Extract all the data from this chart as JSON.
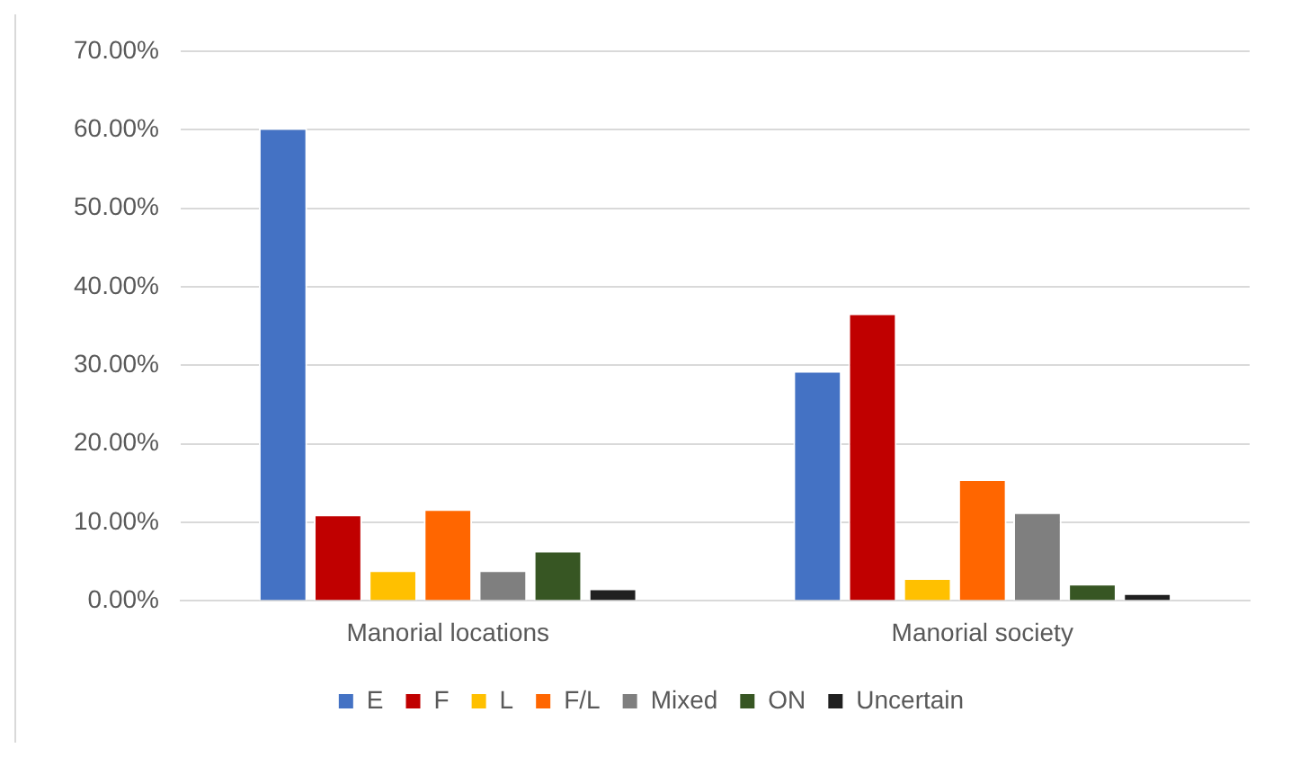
{
  "chart_data": {
    "type": "bar",
    "categories": [
      "Manorial locations",
      "Manorial society"
    ],
    "series": [
      {
        "name": "E",
        "color": "#4472c4",
        "values": [
          60.2,
          29.3
        ]
      },
      {
        "name": "F",
        "color": "#c00000",
        "values": [
          11.0,
          36.6
        ]
      },
      {
        "name": "L",
        "color": "#ffc000",
        "values": [
          3.9,
          2.9
        ]
      },
      {
        "name": "F/L",
        "color": "#ff6600",
        "values": [
          11.7,
          15.5
        ]
      },
      {
        "name": "Mixed",
        "color": "#7f7f7f",
        "values": [
          3.9,
          11.3
        ]
      },
      {
        "name": "ON",
        "color": "#375623",
        "values": [
          6.4,
          2.2
        ]
      },
      {
        "name": "Uncertain",
        "color": "#202020",
        "values": [
          1.6,
          1.0
        ]
      }
    ],
    "ylim": [
      0,
      70
    ],
    "yticks": [
      {
        "value": 0,
        "label": "0.00%"
      },
      {
        "value": 10,
        "label": "10.00%"
      },
      {
        "value": 20,
        "label": "20.00%"
      },
      {
        "value": 30,
        "label": "30.00%"
      },
      {
        "value": 40,
        "label": "40.00%"
      },
      {
        "value": 50,
        "label": "50.00%"
      },
      {
        "value": 60,
        "label": "60.00%"
      },
      {
        "value": 70,
        "label": "70.00%"
      }
    ],
    "grid": "y",
    "legend": "bottom"
  }
}
